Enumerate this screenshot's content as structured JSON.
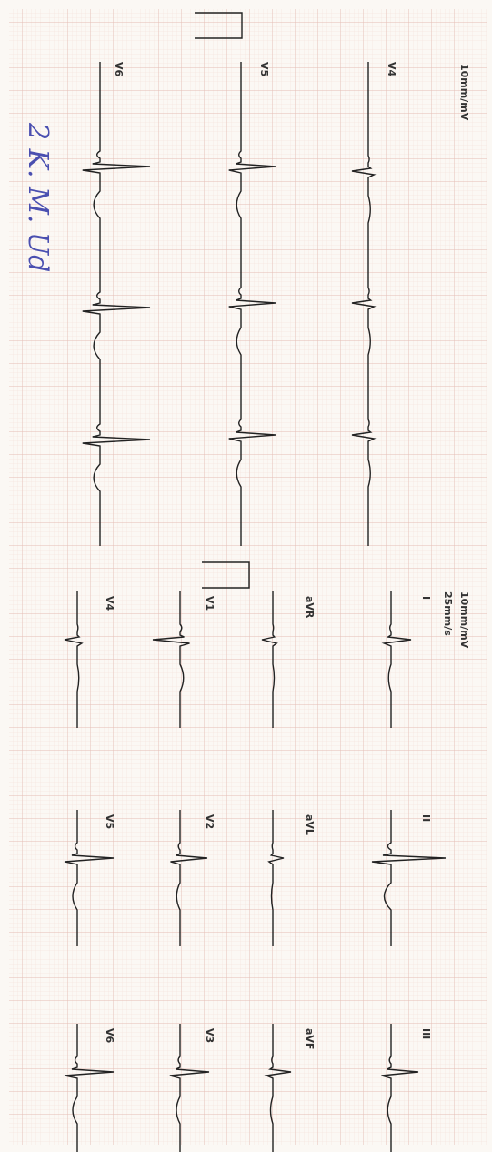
{
  "header": {
    "gain_top": "10mm/mV",
    "gain_bottom": "10mm/mV",
    "speed": "25mm/s"
  },
  "rhythm_strips": [
    {
      "label": "V4"
    },
    {
      "label": "V5"
    },
    {
      "label": "V6"
    }
  ],
  "leads": [
    {
      "label": "I"
    },
    {
      "label": "II"
    },
    {
      "label": "III"
    },
    {
      "label": "aVR"
    },
    {
      "label": "aVL"
    },
    {
      "label": "aVF"
    },
    {
      "label": "V1"
    },
    {
      "label": "V2"
    },
    {
      "label": "V3"
    },
    {
      "label": "V4"
    },
    {
      "label": "V5"
    },
    {
      "label": "V6"
    }
  ],
  "annotation": "2 K. M. Ud"
}
